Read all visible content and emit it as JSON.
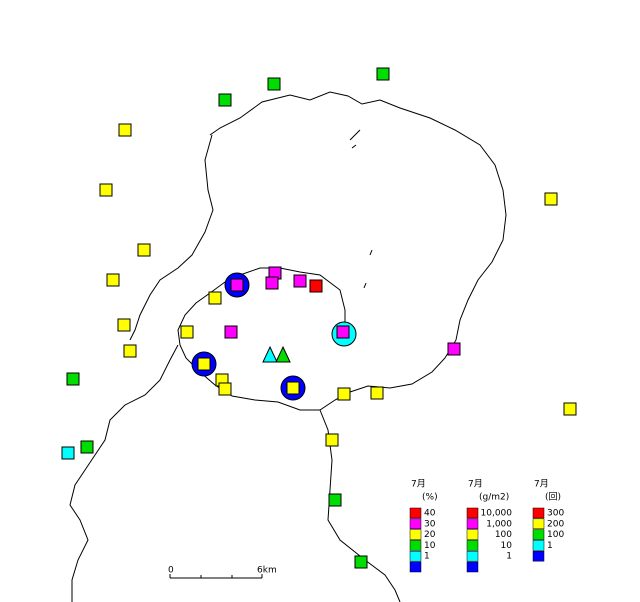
{
  "legends": [
    {
      "title": "7月",
      "unit": "(%)",
      "items": [
        {
          "label": "40",
          "color": "#ff0000"
        },
        {
          "label": "30",
          "color": "#ff00ff"
        },
        {
          "label": "20",
          "color": "#ffff00"
        },
        {
          "label": "10",
          "color": "#00dd00"
        },
        {
          "label": "1",
          "color": "#00ffff"
        },
        {
          "label": null,
          "color": "#0000ff"
        }
      ]
    },
    {
      "title": "7月",
      "unit": "(g/m2)",
      "items": [
        {
          "label": "10,000",
          "color": "#ff0000"
        },
        {
          "label": "1,000",
          "color": "#ff00ff"
        },
        {
          "label": "100",
          "color": "#ffff00"
        },
        {
          "label": "10",
          "color": "#00dd00"
        },
        {
          "label": "1",
          "color": "#00ffff"
        },
        {
          "label": null,
          "color": "#0000ff"
        }
      ]
    },
    {
      "title": "7月",
      "unit": "(回)",
      "items": [
        {
          "label": "300",
          "color": "#ff0000"
        },
        {
          "label": "200",
          "color": "#ffff00"
        },
        {
          "label": "100",
          "color": "#00dd00"
        },
        {
          "label": "1",
          "color": "#00ffff"
        },
        {
          "label": null,
          "color": "#0000ff"
        }
      ]
    }
  ],
  "scale_bar": {
    "start": "0",
    "end": "6km"
  }
}
